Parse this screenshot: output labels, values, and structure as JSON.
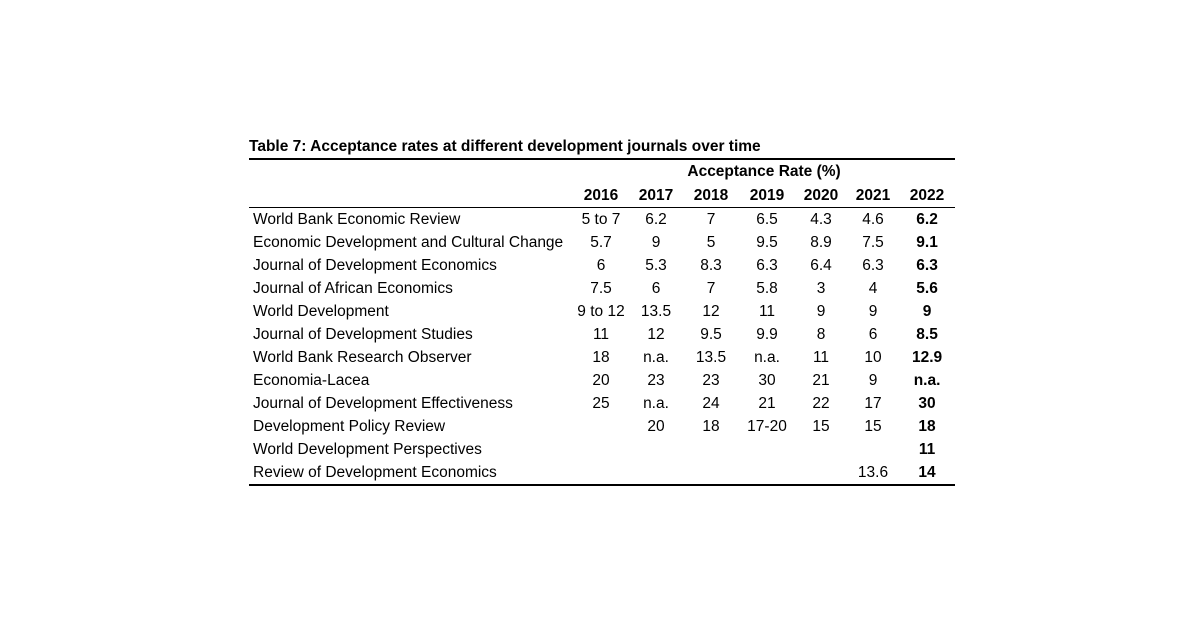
{
  "caption": "Table 7: Acceptance rates at different development journals over time",
  "header": {
    "group_label": "Acceptance Rate (%)",
    "years": [
      "2016",
      "2017",
      "2018",
      "2019",
      "2020",
      "2021",
      "2022"
    ]
  },
  "rows": [
    {
      "journal": "World Bank Economic Review",
      "values": [
        "5 to 7",
        "6.2",
        "7",
        "6.5",
        "4.3",
        "4.6",
        "6.2"
      ]
    },
    {
      "journal": "Economic Development and Cultural Change",
      "values": [
        "5.7",
        "9",
        "5",
        "9.5",
        "8.9",
        "7.5",
        "9.1"
      ]
    },
    {
      "journal": "Journal of Development Economics",
      "values": [
        "6",
        "5.3",
        "8.3",
        "6.3",
        "6.4",
        "6.3",
        "6.3"
      ]
    },
    {
      "journal": "Journal of African Economics",
      "values": [
        "7.5",
        "6",
        "7",
        "5.8",
        "3",
        "4",
        "5.6"
      ]
    },
    {
      "journal": "World Development",
      "values": [
        "9 to 12",
        "13.5",
        "12",
        "11",
        "9",
        "9",
        "9"
      ]
    },
    {
      "journal": "Journal of Development Studies",
      "values": [
        "11",
        "12",
        "9.5",
        "9.9",
        "8",
        "6",
        "8.5"
      ]
    },
    {
      "journal": "World Bank Research Observer",
      "values": [
        "18",
        "n.a.",
        "13.5",
        "n.a.",
        "11",
        "10",
        "12.9"
      ]
    },
    {
      "journal": "Economia-Lacea",
      "values": [
        "20",
        "23",
        "23",
        "30",
        "21",
        "9",
        "n.a."
      ]
    },
    {
      "journal": "Journal of Development Effectiveness",
      "values": [
        "25",
        "n.a.",
        "24",
        "21",
        "22",
        "17",
        "30"
      ]
    },
    {
      "journal": "Development Policy Review",
      "values": [
        "",
        "20",
        "18",
        "17-20",
        "15",
        "15",
        "18"
      ]
    },
    {
      "journal": "World Development Perspectives",
      "values": [
        "",
        "",
        "",
        "",
        "",
        "",
        "11"
      ]
    },
    {
      "journal": "Review of Development Economics",
      "values": [
        "",
        "",
        "",
        "",
        "",
        "13.6",
        "14"
      ]
    }
  ]
}
